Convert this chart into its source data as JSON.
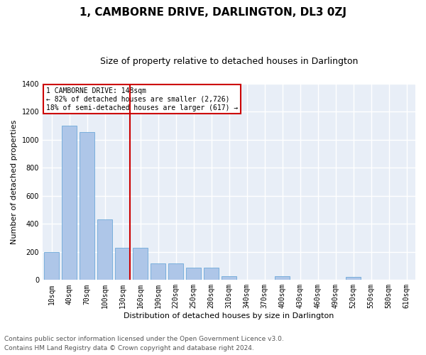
{
  "title": "1, CAMBORNE DRIVE, DARLINGTON, DL3 0ZJ",
  "subtitle": "Size of property relative to detached houses in Darlington",
  "xlabel": "Distribution of detached houses by size in Darlington",
  "ylabel": "Number of detached properties",
  "categories": [
    "10sqm",
    "40sqm",
    "70sqm",
    "100sqm",
    "130sqm",
    "160sqm",
    "190sqm",
    "220sqm",
    "250sqm",
    "280sqm",
    "310sqm",
    "340sqm",
    "370sqm",
    "400sqm",
    "430sqm",
    "460sqm",
    "490sqm",
    "520sqm",
    "550sqm",
    "580sqm",
    "610sqm"
  ],
  "values": [
    200,
    1100,
    1055,
    430,
    230,
    232,
    120,
    118,
    90,
    88,
    28,
    0,
    0,
    25,
    0,
    0,
    0,
    20,
    0,
    0,
    0
  ],
  "bar_color": "#aec6e8",
  "bar_edge_color": "#5a9fd4",
  "background_color": "#e8eef7",
  "grid_color": "#ffffff",
  "vline_color": "#cc0000",
  "ylim": [
    0,
    1400
  ],
  "yticks": [
    0,
    200,
    400,
    600,
    800,
    1000,
    1200,
    1400
  ],
  "annotation_box_text": "1 CAMBORNE DRIVE: 148sqm\n← 82% of detached houses are smaller (2,726)\n18% of semi-detached houses are larger (617) →",
  "footer_line1": "Contains HM Land Registry data © Crown copyright and database right 2024.",
  "footer_line2": "Contains public sector information licensed under the Open Government Licence v3.0.",
  "title_fontsize": 11,
  "subtitle_fontsize": 9,
  "xlabel_fontsize": 8,
  "ylabel_fontsize": 8,
  "tick_fontsize": 7,
  "annot_fontsize": 7,
  "footer_fontsize": 6.5
}
